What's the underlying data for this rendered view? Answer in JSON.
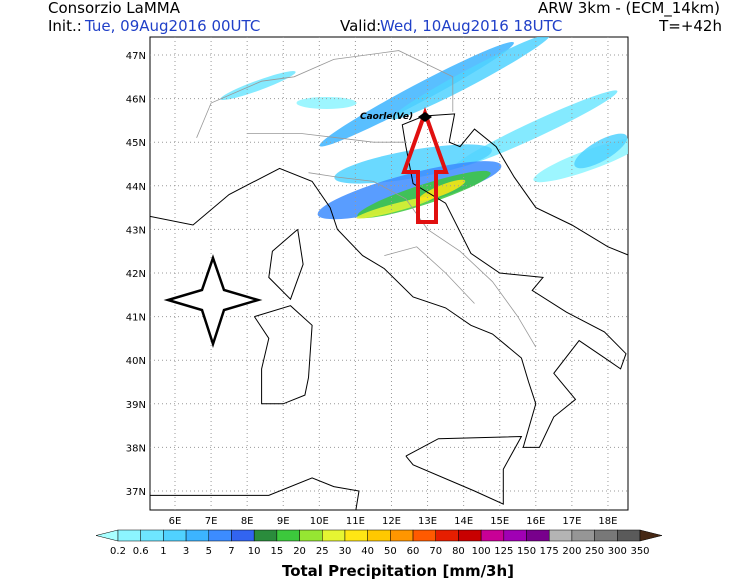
{
  "header": {
    "agency": "Consorzio LaMMA",
    "init_label": "Init.:",
    "init_time": "Tue, 09Aug2016 00UTC",
    "valid_label": "Valid:",
    "valid_time": "Wed, 10Aug2016 18UTC",
    "model": "ARW 3km - (ECM_14km)",
    "lead": "T=+42h"
  },
  "map": {
    "lat_labels": [
      "47N",
      "46N",
      "45N",
      "44N",
      "43N",
      "42N",
      "41N",
      "40N",
      "39N",
      "38N",
      "37N"
    ],
    "lon_labels": [
      "6E",
      "7E",
      "8E",
      "9E",
      "10E",
      "11E",
      "12E",
      "13E",
      "14E",
      "15E",
      "16E",
      "17E",
      "18E"
    ],
    "place": "Caorle(Ve)"
  },
  "colorbar": {
    "labels": [
      "0.2",
      "0.6",
      "1",
      "3",
      "5",
      "7",
      "10",
      "15",
      "20",
      "25",
      "30",
      "40",
      "50",
      "60",
      "70",
      "80",
      "100",
      "125",
      "150",
      "175",
      "200",
      "250",
      "300",
      "350"
    ],
    "colors": [
      "#a8ffff",
      "#8cf5ff",
      "#6ee6ff",
      "#50d2ff",
      "#3cb4ff",
      "#3c8cff",
      "#3264f0",
      "#2a8c3c",
      "#3cc83c",
      "#96e632",
      "#e6f532",
      "#ffe614",
      "#ffc800",
      "#ff9600",
      "#ff5a00",
      "#e61e00",
      "#c80000",
      "#c80096",
      "#a000b4",
      "#78008c",
      "#b4b4b4",
      "#969696",
      "#787878",
      "#5a5a5a",
      "#3c3c3c",
      "#503214",
      "#643c14",
      "#462814"
    ],
    "title": "Total Precipitation [mm/3h]"
  }
}
